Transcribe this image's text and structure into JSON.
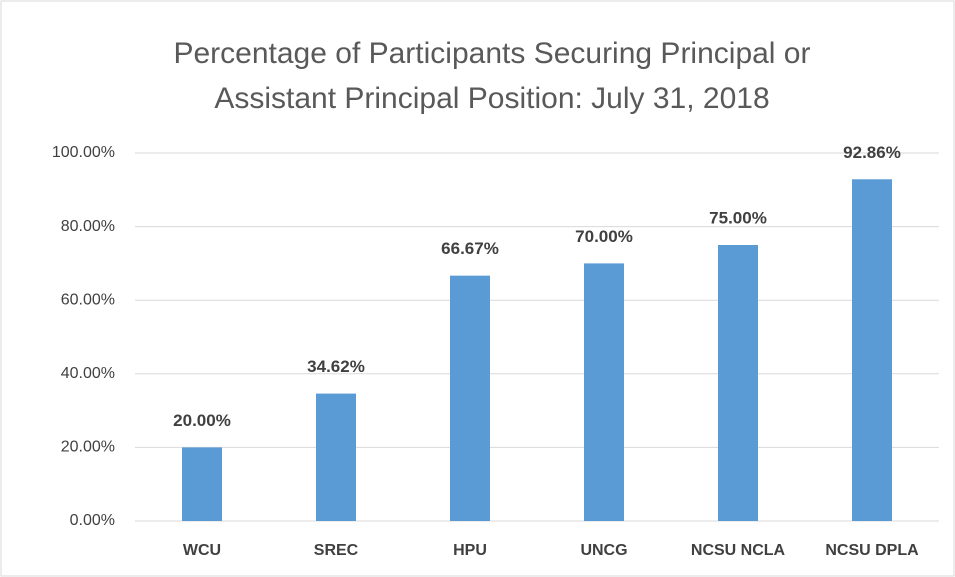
{
  "chart_data": {
    "type": "bar",
    "title": [
      "Percentage of Participants Securing Principal or",
      "Assistant Principal Position: July 31, 2018"
    ],
    "categories": [
      "WCU",
      "SREC",
      "HPU",
      "UNCG",
      "NCSU NCLA",
      "NCSU DPLA"
    ],
    "values": [
      20,
      34.62,
      66.67,
      70,
      75,
      92.86
    ],
    "value_labels": [
      "20.00%",
      "34.62%",
      "66.67%",
      "70.00%",
      "75.00%",
      "92.86%"
    ],
    "color": "#5b9bd5",
    "ylim": [
      0,
      100
    ],
    "yticks": [
      {
        "value": 0,
        "label": "0.00%"
      },
      {
        "value": 20,
        "label": "20.00%"
      },
      {
        "value": 40,
        "label": "40.00%"
      },
      {
        "value": 60,
        "label": "60.00%"
      },
      {
        "value": 80,
        "label": "80.00%"
      },
      {
        "value": 100,
        "label": "100.00%"
      }
    ],
    "grid": true
  }
}
